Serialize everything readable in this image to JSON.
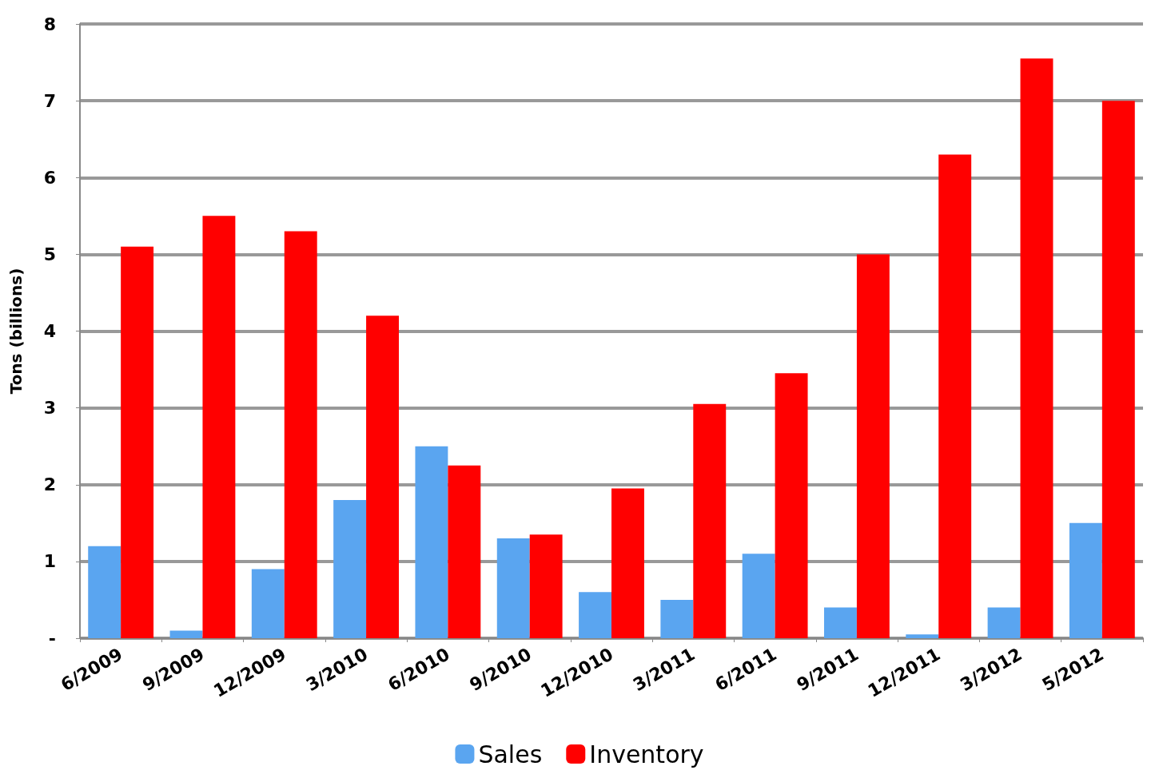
{
  "chart_data": {
    "type": "bar",
    "ylabel": "Tons (billions)",
    "categories": [
      "6/2009",
      "9/2009",
      "12/2009",
      "3/2010",
      "6/2010",
      "9/2010",
      "12/2010",
      "3/2011",
      "6/2011",
      "9/2011",
      "12/2011",
      "3/2012",
      "5/2012"
    ],
    "series": [
      {
        "name": "Sales",
        "color": "#5aa5f0",
        "values": [
          1.2,
          0.1,
          0.9,
          1.8,
          2.5,
          1.3,
          0.6,
          0.5,
          1.1,
          0.4,
          0.05,
          0.4,
          1.5
        ]
      },
      {
        "name": "Inventory",
        "color": "#ff0000",
        "values": [
          5.1,
          5.5,
          5.3,
          4.2,
          2.25,
          1.35,
          1.95,
          3.05,
          3.45,
          5.0,
          6.3,
          7.55,
          7.0
        ]
      }
    ],
    "ylim": [
      0,
      8
    ],
    "yticks": [
      {
        "value": 0,
        "label": "-"
      },
      1,
      2,
      3,
      4,
      5,
      6,
      7,
      8
    ],
    "grid": "y",
    "legend": "bottom"
  }
}
